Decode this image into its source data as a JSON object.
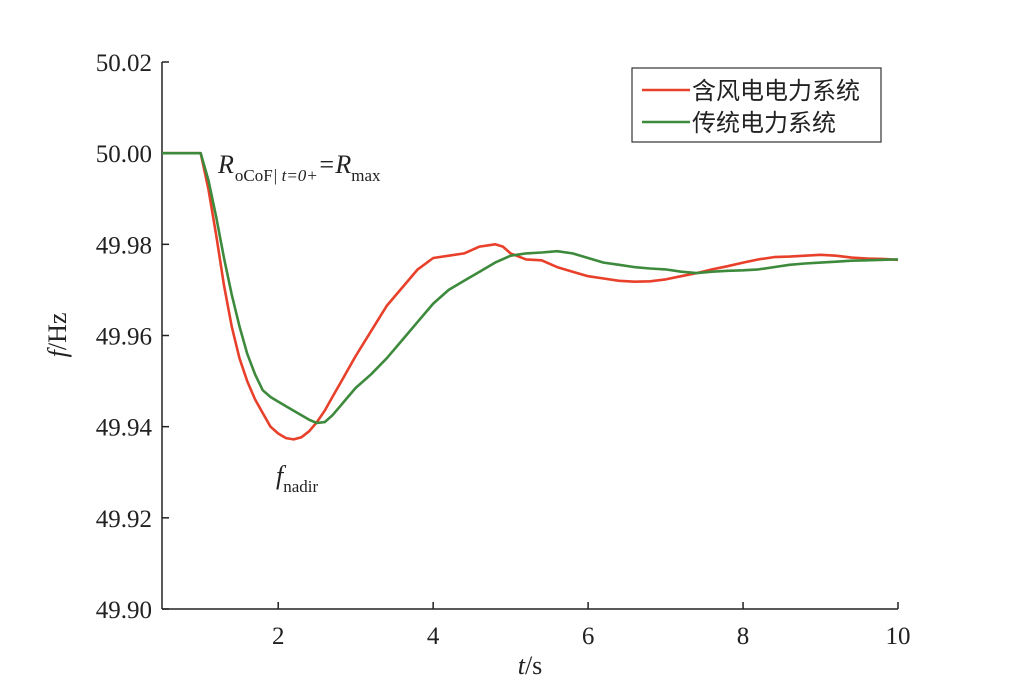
{
  "chart_data": {
    "type": "line",
    "xlabel": {
      "var": "t",
      "unit": "/s"
    },
    "ylabel": {
      "var": "f",
      "unit": "/Hz"
    },
    "xlim": [
      0.5,
      10
    ],
    "ylim": [
      49.9,
      50.02
    ],
    "x_ticks": [
      2,
      4,
      6,
      8,
      10
    ],
    "x_tick_labels": [
      "2",
      "4",
      "6",
      "8",
      "10"
    ],
    "y_ticks": [
      49.9,
      49.92,
      49.94,
      49.96,
      49.98,
      50.0,
      50.02
    ],
    "y_tick_labels": [
      "49.90",
      "49.92",
      "49.94",
      "49.96",
      "49.98",
      "50.00",
      "50.02"
    ],
    "grid": false,
    "legend_position": "top-right",
    "series": [
      {
        "name": "含风电电力系统",
        "color": "#e8402a",
        "x": [
          0.5,
          0.8,
          1.0,
          1.1,
          1.2,
          1.3,
          1.4,
          1.5,
          1.6,
          1.7,
          1.8,
          1.9,
          2.0,
          2.1,
          2.2,
          2.3,
          2.4,
          2.5,
          2.6,
          2.7,
          2.8,
          2.9,
          3.0,
          3.2,
          3.4,
          3.6,
          3.8,
          4.0,
          4.2,
          4.4,
          4.6,
          4.8,
          4.9,
          5.0,
          5.2,
          5.4,
          5.6,
          5.8,
          6.0,
          6.2,
          6.4,
          6.6,
          6.8,
          7.0,
          7.2,
          7.4,
          7.6,
          7.8,
          8.0,
          8.2,
          8.4,
          8.6,
          8.8,
          9.0,
          9.2,
          9.4,
          9.6,
          9.8,
          10.0
        ],
        "y": [
          50.0,
          50.0,
          50.0,
          49.992,
          49.982,
          49.971,
          49.962,
          49.955,
          49.95,
          49.946,
          49.943,
          49.94,
          49.9385,
          49.9375,
          49.9372,
          49.9377,
          49.939,
          49.941,
          49.9435,
          49.9465,
          49.9495,
          49.9525,
          49.9555,
          49.961,
          49.9665,
          49.9705,
          49.9745,
          49.977,
          49.9775,
          49.978,
          49.9795,
          49.98,
          49.9795,
          49.978,
          49.9767,
          49.9765,
          49.975,
          49.974,
          49.973,
          49.9725,
          49.972,
          49.9718,
          49.9719,
          49.9723,
          49.973,
          49.9737,
          49.9745,
          49.9752,
          49.976,
          49.9767,
          49.9772,
          49.9773,
          49.9775,
          49.9777,
          49.9775,
          49.9771,
          49.9769,
          49.9768,
          49.9766
        ]
      },
      {
        "name": "传统电力系统",
        "color": "#3d8a3d",
        "x": [
          0.5,
          0.8,
          1.0,
          1.1,
          1.2,
          1.3,
          1.4,
          1.5,
          1.6,
          1.7,
          1.8,
          1.9,
          2.0,
          2.1,
          2.2,
          2.3,
          2.4,
          2.5,
          2.6,
          2.7,
          2.8,
          2.9,
          3.0,
          3.2,
          3.4,
          3.6,
          3.8,
          4.0,
          4.2,
          4.4,
          4.6,
          4.8,
          5.0,
          5.2,
          5.4,
          5.6,
          5.8,
          6.0,
          6.2,
          6.4,
          6.6,
          6.8,
          7.0,
          7.2,
          7.4,
          7.6,
          7.8,
          8.0,
          8.2,
          8.4,
          8.6,
          8.8,
          9.0,
          9.2,
          9.4,
          9.6,
          9.8,
          10.0
        ],
        "y": [
          50.0,
          50.0,
          50.0,
          49.994,
          49.986,
          49.977,
          49.969,
          49.962,
          49.956,
          49.9515,
          49.948,
          49.9465,
          49.9455,
          49.9445,
          49.9435,
          49.9425,
          49.9415,
          49.9408,
          49.941,
          49.9425,
          49.9445,
          49.9465,
          49.9485,
          49.9515,
          49.955,
          49.959,
          49.963,
          49.967,
          49.97,
          49.972,
          49.974,
          49.976,
          49.9775,
          49.978,
          49.9782,
          49.9785,
          49.978,
          49.977,
          49.976,
          49.9755,
          49.975,
          49.9747,
          49.9745,
          49.974,
          49.9737,
          49.974,
          49.9742,
          49.9743,
          49.9745,
          49.975,
          49.9755,
          49.9758,
          49.976,
          49.9762,
          49.9764,
          49.9765,
          49.9766,
          49.9767
        ]
      }
    ],
    "annotations": [
      {
        "id": "rocof",
        "x": 1.05,
        "y": 49.9985,
        "main": "R",
        "sub": "oCoF",
        "sub_cond": "| t=0+",
        "eq": "=R",
        "sub2": "max"
      },
      {
        "id": "nadir",
        "x": 1.95,
        "y": 49.9265,
        "main": "f",
        "sub": "nadir"
      }
    ]
  }
}
